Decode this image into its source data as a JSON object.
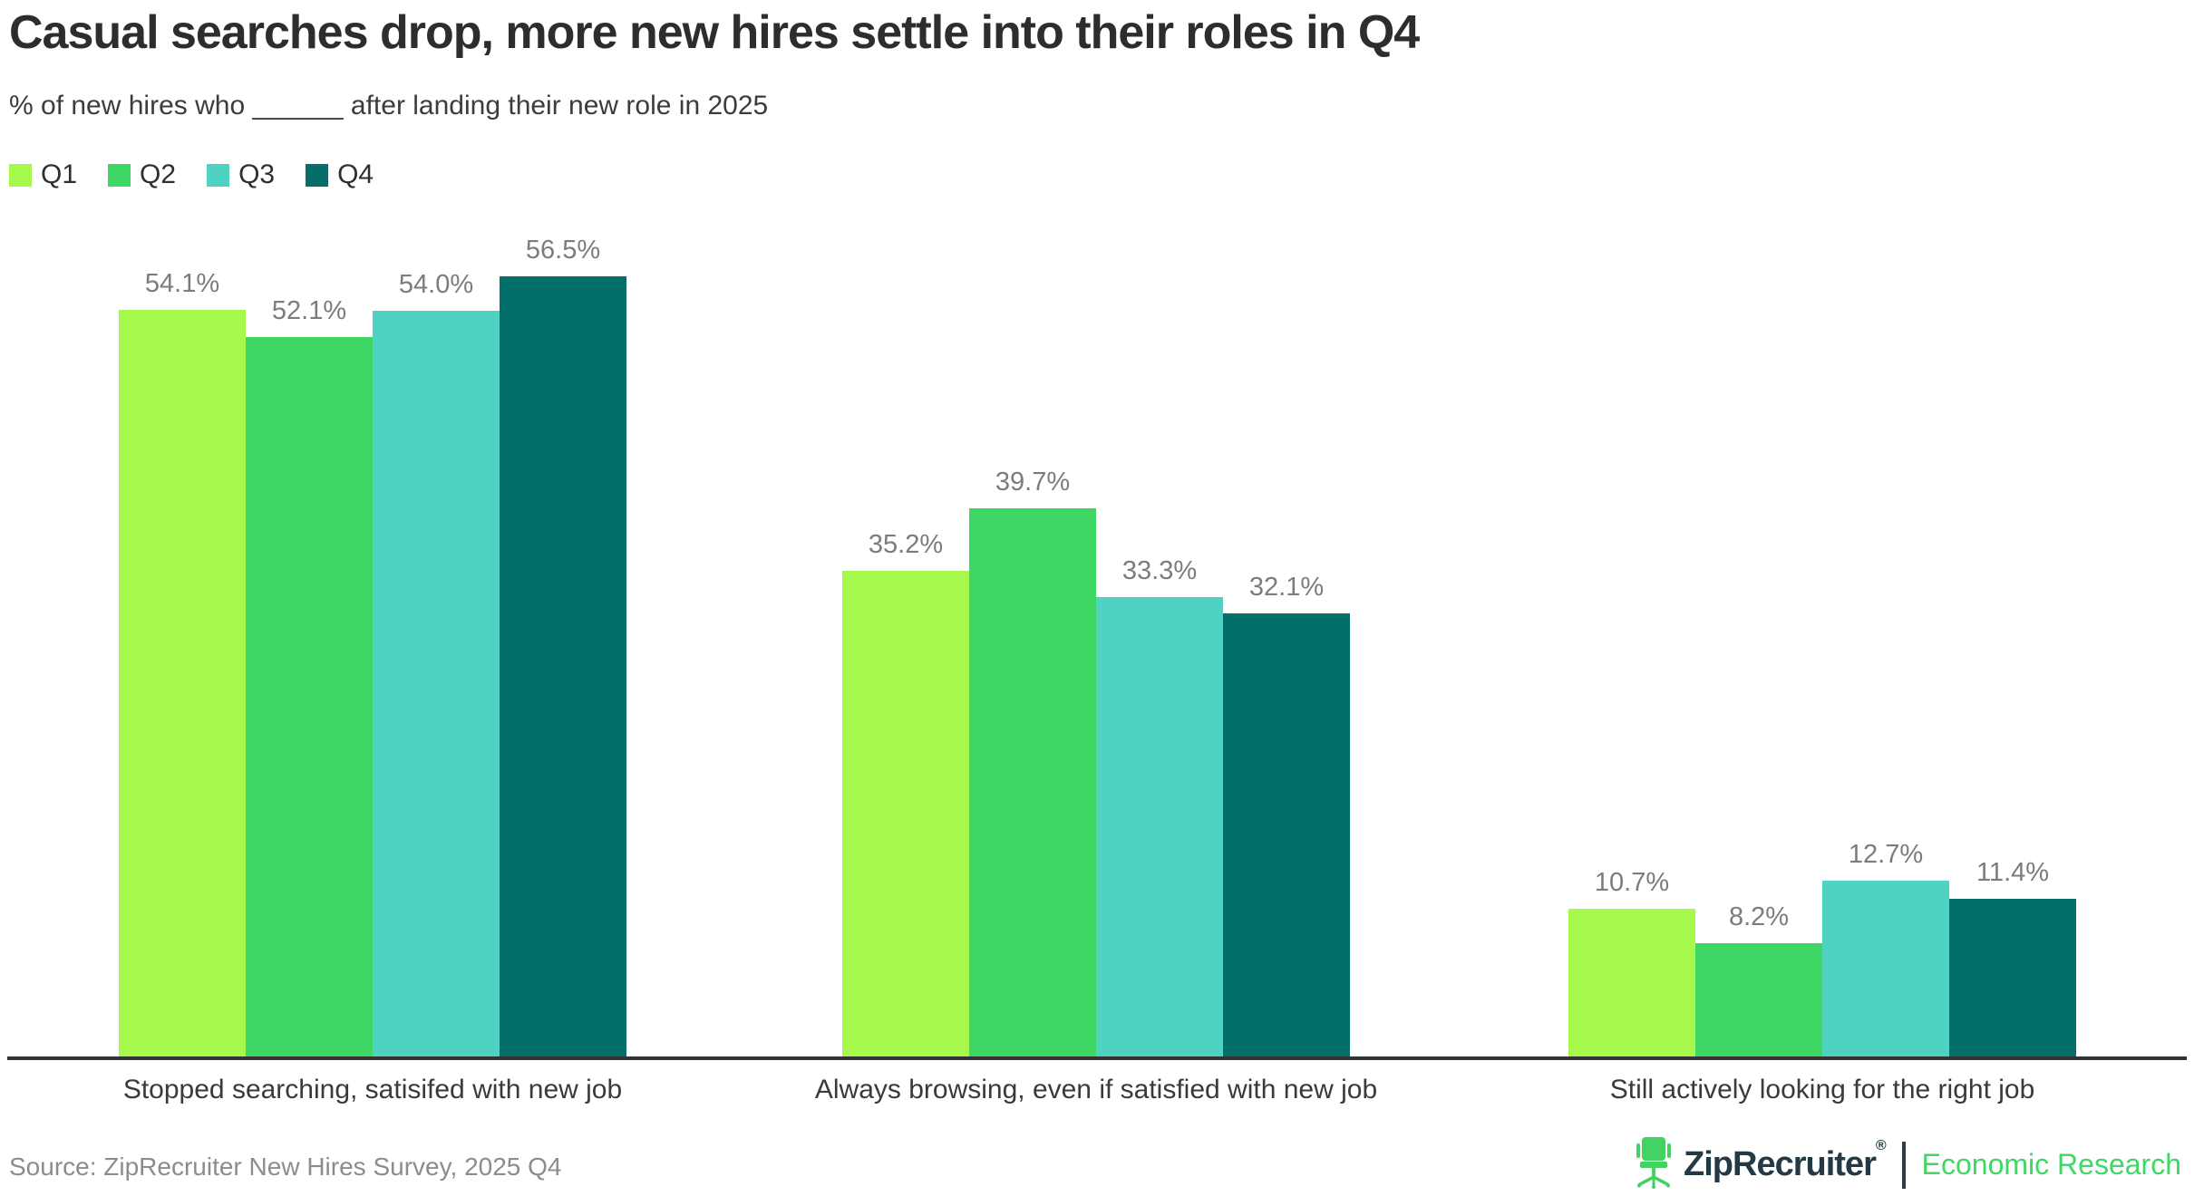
{
  "header": {
    "title": "Casual searches drop, more new hires settle into their roles in Q4",
    "subtitle": "% of new hires who ______ after landing their new role in 2025"
  },
  "colors": {
    "q1": "#a6f84c",
    "q2": "#3fd763",
    "q3": "#50d2c2",
    "q4": "#026f6a",
    "axis": "#333333",
    "value_label": "#7c7c7c",
    "brand_navy": "#233945",
    "brand_green": "#41d765"
  },
  "chart_data": {
    "type": "bar",
    "title": "Casual searches drop, more new hires settle into their roles in Q4",
    "subtitle": "% of new hires who ______ after landing their new role in 2025",
    "categories": [
      "Stopped searching, satisifed with new job",
      "Always browsing, even if satisfied with new job",
      "Still actively looking for the right job"
    ],
    "series": [
      {
        "name": "Q1",
        "color": "#a6f84c",
        "values": [
          54.1,
          35.2,
          10.7
        ]
      },
      {
        "name": "Q2",
        "color": "#3fd763",
        "values": [
          52.1,
          39.7,
          8.2
        ]
      },
      {
        "name": "Q3",
        "color": "#50d2c2",
        "values": [
          54.0,
          33.3,
          12.7
        ]
      },
      {
        "name": "Q4",
        "color": "#026f6a",
        "values": [
          56.5,
          32.1,
          11.4
        ]
      }
    ],
    "value_labels": [
      [
        "54.1%",
        "35.2%",
        "10.7%"
      ],
      [
        "52.1%",
        "39.7%",
        "8.2%"
      ],
      [
        "54.0%",
        "33.3%",
        "12.7%"
      ],
      [
        "56.5%",
        "32.1%",
        "11.4%"
      ]
    ],
    "ylim": [
      0,
      60
    ],
    "grid": false,
    "legend_position": "top-left",
    "legend": [
      "Q1",
      "Q2",
      "Q3",
      "Q4"
    ]
  },
  "footer": {
    "source": "Source: ZipRecruiter New Hires Survey, 2025 Q4",
    "brand_name": "ZipRecruiter",
    "brand_reg": "®",
    "brand_unit": "Economic Research"
  }
}
